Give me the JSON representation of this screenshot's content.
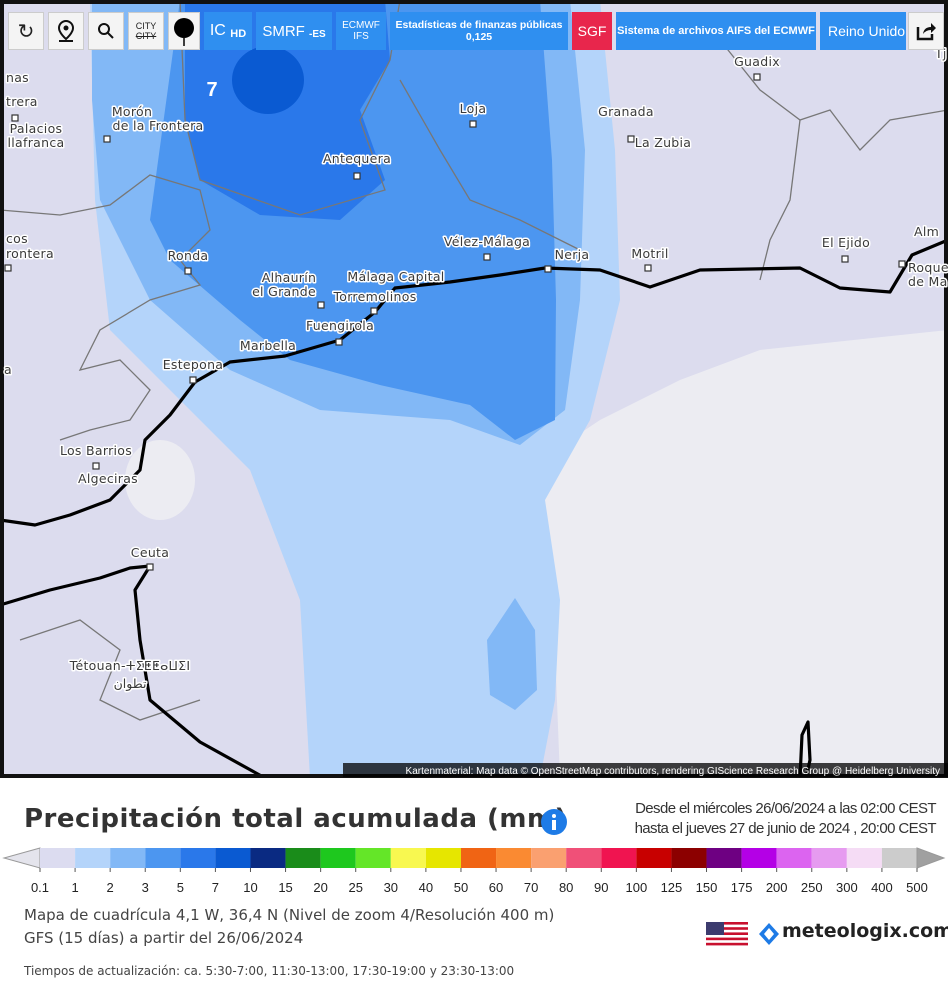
{
  "toolbar": {
    "city_top": "CITY",
    "city_bottom": "CITY",
    "ic": "IC",
    "hd": "HD",
    "smrf": "SMRF",
    "smrf_sub": "-ES",
    "ecmwf": "ECMWF",
    "ifs": "IFS",
    "stats": "Estadísticas de finanzas públicas",
    "stats_value": "0,125",
    "sgf": "SGF",
    "aifs": "Sistema de archivos AIFS del ECMWF",
    "region": "Reino Unido"
  },
  "map": {
    "value_label": "7",
    "labels": [
      "Guadix",
      "Morón",
      "de la Frontera",
      "Palacios",
      "llafranca",
      "nas",
      "trera",
      "Loja",
      "Granada",
      "La Zubia",
      "Antequera",
      "Vélez-Málaga",
      "Ronda",
      "Nerja",
      "Motril",
      "El Ejido",
      "Alm",
      "Roque",
      "de Ma",
      "cos",
      "rontera",
      "Alhaurín",
      "el Grande",
      "Málaga Capital",
      "Torremolinos",
      "Fuengirola",
      "Marbella",
      "Estepona",
      "a",
      "Los Barrios",
      "Algeciras",
      "Ceuta",
      "Tétouan-ⵜⵉⵟⵟⴰⵡⵉⵏ",
      "تطوان",
      "Tj"
    ],
    "attribution": "Kartenmaterial: Map data © OpenStreetMap contributors, rendering GIScience Research Group @ Heidelberg University"
  },
  "legend": {
    "title": "Precipitación total acumulada (mm)",
    "from": "Desde el miércoles 26/06/2024 a  las 02:00  CEST",
    "to": "hasta el jueves 27 de junio de 2024 ,  20:00  CEST",
    "labels": [
      "0.1",
      "1",
      "2",
      "3",
      "5",
      "7",
      "10",
      "15",
      "20",
      "25",
      "30",
      "40",
      "50",
      "60",
      "70",
      "80",
      "90",
      "100",
      "125",
      "150",
      "175",
      "200",
      "250",
      "300",
      "400",
      "500"
    ],
    "colors": [
      "#dcdcf0",
      "#b4d4fa",
      "#82b8f6",
      "#4c96f0",
      "#2a78ea",
      "#0a5ad2",
      "#0a2a82",
      "#1a8c1a",
      "#1ec81e",
      "#64e628",
      "#f8f850",
      "#e6e600",
      "#f06414",
      "#fa8a32",
      "#faa070",
      "#f05078",
      "#f01450",
      "#c80000",
      "#8c0000",
      "#6e0082",
      "#b400e6",
      "#dc64f0",
      "#e69bf0",
      "#f5dcf5",
      "#cccccc"
    ],
    "under_color": "#e4e4ec",
    "over_color": "#a0a0a0"
  },
  "info": {
    "grid": "Mapa de cuadrícula 4,1 W, 36,4 N  (Nivel de zoom 4/Resolución 400 m)",
    "model": "GFS  (15 días)  a partir del 26/06/2024",
    "brand": "meteologix.com",
    "updates": "Tiempos de actualización: ca. 5:30-7:00, 11:30-13:00, 17:30-19:00 y 23:30-13:00"
  }
}
